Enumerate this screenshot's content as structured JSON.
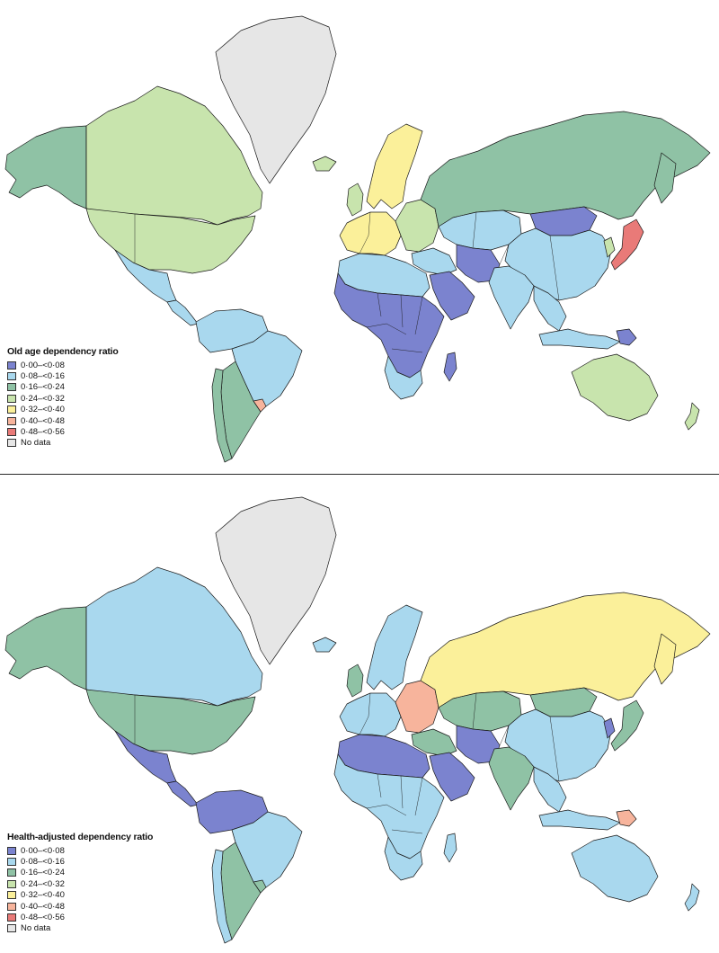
{
  "colors": {
    "c0": "#7b83cf",
    "c1": "#a9d8ee",
    "c2": "#8fc2a5",
    "c3": "#c8e4ad",
    "c4": "#fbf09a",
    "c5": "#f7b49c",
    "c6": "#e97a78",
    "nodata": "#e6e6e6"
  },
  "panels": [
    {
      "legend": {
        "title": "Old age dependency ratio",
        "items": [
          {
            "label": "0·00–<0·08",
            "color": "#7b83cf"
          },
          {
            "label": "0·08–<0·16",
            "color": "#a9d8ee"
          },
          {
            "label": "0·16–<0·24",
            "color": "#8fc2a5"
          },
          {
            "label": "0·24–<0·32",
            "color": "#c8e4ad"
          },
          {
            "label": "0·32–<0·40",
            "color": "#fbf09a"
          },
          {
            "label": "0·40–<0·48",
            "color": "#f7b49c"
          },
          {
            "label": "0·48–<0·56",
            "color": "#e97a78"
          },
          {
            "label": "No data",
            "color": "#e6e6e6"
          }
        ]
      },
      "regions": {
        "canada": "c3",
        "alaska": "c2",
        "usa": "c3",
        "greenland": "nodata",
        "mexico": "c1",
        "central_america": "c1",
        "south_america_north": "c1",
        "brazil": "c1",
        "argentina": "c2",
        "chile": "c2",
        "uruguay": "c5",
        "iceland": "c3",
        "uk": "c3",
        "scandinavia": "c4",
        "western_europe": "c4",
        "eastern_europe": "c3",
        "russia": "c2",
        "kazakhstan": "c1",
        "mongolia": "c0",
        "china": "c1",
        "japan": "c6",
        "korea": "c3",
        "middle_east": "c1",
        "arabia": "c0",
        "iran_afg": "c0",
        "india": "c1",
        "southeast_asia": "c1",
        "indonesia": "c1",
        "papua": "c0",
        "australia": "c3",
        "new_zealand": "c3",
        "north_africa": "c1",
        "africa_central": "c0",
        "south_africa": "c1",
        "madagascar": "c0",
        "kamchatka": "c2"
      }
    },
    {
      "legend": {
        "title": "Health-adjusted dependency ratio",
        "items": [
          {
            "label": "0·00–<0·08",
            "color": "#7b83cf"
          },
          {
            "label": "0·08–<0·16",
            "color": "#a9d8ee"
          },
          {
            "label": "0·16–<0·24",
            "color": "#8fc2a5"
          },
          {
            "label": "0·24–<0·32",
            "color": "#c8e4ad"
          },
          {
            "label": "0·32–<0·40",
            "color": "#fbf09a"
          },
          {
            "label": "0·40–<0·48",
            "color": "#f7b49c"
          },
          {
            "label": "0·48–<0·56",
            "color": "#e97a78"
          },
          {
            "label": "No data",
            "color": "#e6e6e6"
          }
        ]
      },
      "regions": {
        "canada": "c1",
        "alaska": "c2",
        "usa": "c2",
        "greenland": "nodata",
        "mexico": "c0",
        "central_america": "c0",
        "south_america_north": "c0",
        "brazil": "c1",
        "argentina": "c2",
        "chile": "c1",
        "uruguay": "c2",
        "iceland": "c1",
        "uk": "c2",
        "scandinavia": "c1",
        "western_europe": "c1",
        "eastern_europe": "c5",
        "russia": "c4",
        "kazakhstan": "c2",
        "mongolia": "c2",
        "china": "c1",
        "japan": "c2",
        "korea": "c0",
        "middle_east": "c2",
        "arabia": "c0",
        "iran_afg": "c0",
        "india": "c2",
        "southeast_asia": "c1",
        "indonesia": "c1",
        "papua": "c5",
        "australia": "c1",
        "new_zealand": "c1",
        "north_africa": "c0",
        "africa_central": "c1",
        "south_africa": "c1",
        "madagascar": "c1",
        "kamchatka": "c4"
      }
    }
  ]
}
